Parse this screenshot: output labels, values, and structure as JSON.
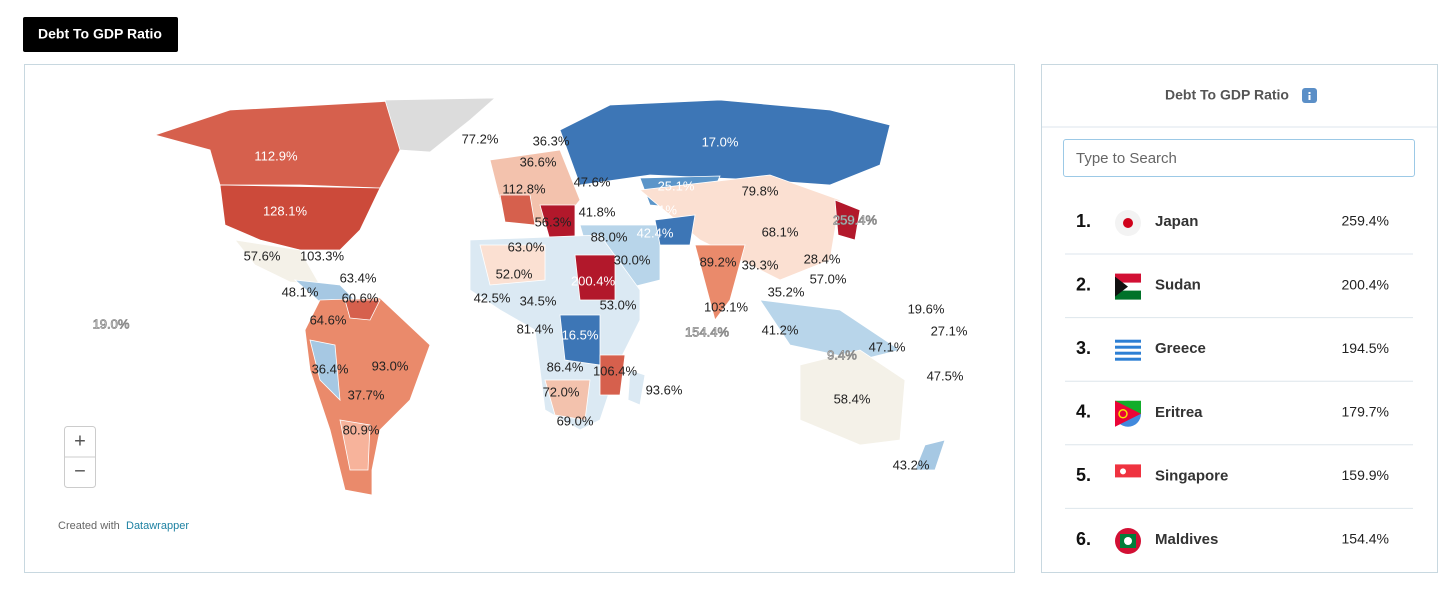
{
  "tab": "Debt To GDP Ratio",
  "map": {
    "labels": [
      "112.9%",
      "128.1%",
      "77.2%",
      "36.3%",
      "17.0%",
      "36.6%",
      "47.6%",
      "25.1%",
      "79.8%",
      "112.8%",
      "41.8%",
      "11.1%",
      "56.3%",
      "88.0%",
      "42.4%",
      "68.1%",
      "259.4%",
      "63.0%",
      "57.6%",
      "103.3%",
      "30.0%",
      "89.2%",
      "39.3%",
      "28.4%",
      "52.0%",
      "63.4%",
      "200.4%",
      "57.0%",
      "48.1%",
      "60.6%",
      "35.2%",
      "42.5%",
      "34.5%",
      "53.0%",
      "103.1%",
      "19.6%",
      "64.6%",
      "19.0%",
      "81.4%",
      "16.5%",
      "154.4%",
      "41.2%",
      "27.1%",
      "47.1%",
      "9.4%",
      "36.4%",
      "93.0%",
      "86.4%",
      "106.4%",
      "47.5%",
      "37.7%",
      "72.0%",
      "93.6%",
      "58.4%",
      "80.9%",
      "69.0%",
      "43.2%"
    ],
    "zoom_in": "+",
    "zoom_out": "−",
    "credit": "Created with",
    "credit_link": "Datawrapper"
  },
  "panel": {
    "title": "Debt To GDP Ratio",
    "search_placeholder": "Type to Search",
    "rows": [
      {
        "rank": "1.",
        "country": "Japan",
        "value": "259.4%"
      },
      {
        "rank": "2.",
        "country": "Sudan",
        "value": "200.4%"
      },
      {
        "rank": "3.",
        "country": "Greece",
        "value": "194.5%"
      },
      {
        "rank": "4.",
        "country": "Eritrea",
        "value": "179.7%"
      },
      {
        "rank": "5.",
        "country": "Singapore",
        "value": "159.9%"
      },
      {
        "rank": "6.",
        "country": "Maldives",
        "value": "154.4%"
      }
    ]
  }
}
